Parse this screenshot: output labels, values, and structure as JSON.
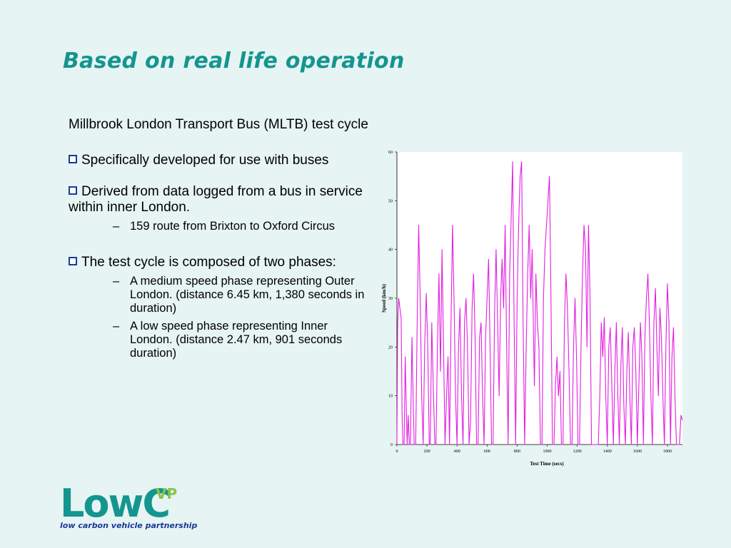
{
  "slide": {
    "title": "Based on real life operation",
    "intro": "Millbrook London Transport Bus (MLTB) test cycle",
    "bullets": [
      {
        "text": "Specifically developed for use with buses",
        "subs": []
      },
      {
        "text": "Derived from data logged from a bus in service within inner London.",
        "subs": [
          "159 route from Brixton to Oxford Circus"
        ]
      },
      {
        "text": "The test cycle is composed of two phases:",
        "subs": [
          "A medium speed phase representing  Outer London. (distance 6.45 km, 1,380 seconds in duration)",
          "A low speed phase representing Inner London. (distance 2.47 km, 901 seconds duration)"
        ]
      }
    ],
    "dash": "–"
  },
  "logo": {
    "low": "Low",
    "c": "C",
    "vp": "VP",
    "tagline": "low carbon vehicle partnership"
  },
  "chart_data": {
    "type": "line",
    "xlabel": "Test Time (secs)",
    "ylabel": "Speed (km/h)",
    "xlim": [
      0,
      1900
    ],
    "ylim": [
      0,
      60
    ],
    "xticks": [
      0,
      200,
      400,
      600,
      800,
      1000,
      1200,
      1400,
      1600,
      1800
    ],
    "yticks": [
      0,
      10,
      20,
      30,
      40,
      50,
      60
    ],
    "grid": false,
    "line_color": "#e21fe0",
    "series": [
      {
        "points": [
          [
            0,
            0
          ],
          [
            5,
            25
          ],
          [
            12,
            30
          ],
          [
            20,
            28
          ],
          [
            28,
            26
          ],
          [
            35,
            5
          ],
          [
            40,
            0
          ],
          [
            48,
            0
          ],
          [
            55,
            18
          ],
          [
            62,
            8
          ],
          [
            68,
            0
          ],
          [
            75,
            6
          ],
          [
            82,
            0
          ],
          [
            90,
            0
          ],
          [
            100,
            22
          ],
          [
            108,
            10
          ],
          [
            115,
            0
          ],
          [
            125,
            0
          ],
          [
            135,
            25
          ],
          [
            145,
            45
          ],
          [
            155,
            30
          ],
          [
            165,
            10
          ],
          [
            175,
            0
          ],
          [
            185,
            20
          ],
          [
            195,
            31
          ],
          [
            205,
            20
          ],
          [
            215,
            0
          ],
          [
            222,
            0
          ],
          [
            232,
            25
          ],
          [
            242,
            12
          ],
          [
            252,
            0
          ],
          [
            260,
            0
          ],
          [
            270,
            20
          ],
          [
            280,
            35
          ],
          [
            290,
            15
          ],
          [
            300,
            40
          ],
          [
            310,
            20
          ],
          [
            320,
            0
          ],
          [
            330,
            10
          ],
          [
            340,
            18
          ],
          [
            350,
            0
          ],
          [
            360,
            25
          ],
          [
            370,
            45
          ],
          [
            380,
            30
          ],
          [
            390,
            10
          ],
          [
            400,
            0
          ],
          [
            410,
            20
          ],
          [
            420,
            28
          ],
          [
            430,
            10
          ],
          [
            440,
            0
          ],
          [
            450,
            25
          ],
          [
            460,
            30
          ],
          [
            470,
            20
          ],
          [
            480,
            0
          ],
          [
            490,
            5
          ],
          [
            500,
            28
          ],
          [
            510,
            35
          ],
          [
            520,
            22
          ],
          [
            530,
            0
          ],
          [
            540,
            0
          ],
          [
            550,
            22
          ],
          [
            560,
            25
          ],
          [
            570,
            10
          ],
          [
            580,
            0
          ],
          [
            590,
            22
          ],
          [
            600,
            30
          ],
          [
            610,
            38
          ],
          [
            620,
            20
          ],
          [
            630,
            0
          ],
          [
            640,
            0
          ],
          [
            650,
            27
          ],
          [
            660,
            40
          ],
          [
            670,
            25
          ],
          [
            680,
            10
          ],
          [
            690,
            30
          ],
          [
            700,
            38
          ],
          [
            710,
            28
          ],
          [
            720,
            45
          ],
          [
            730,
            20
          ],
          [
            740,
            0
          ],
          [
            750,
            35
          ],
          [
            760,
            46
          ],
          [
            770,
            58
          ],
          [
            780,
            25
          ],
          [
            790,
            0
          ],
          [
            800,
            30
          ],
          [
            810,
            45
          ],
          [
            820,
            55
          ],
          [
            830,
            58
          ],
          [
            840,
            25
          ],
          [
            850,
            0
          ],
          [
            860,
            20
          ],
          [
            870,
            35
          ],
          [
            880,
            45
          ],
          [
            890,
            30
          ],
          [
            900,
            40
          ],
          [
            910,
            20
          ],
          [
            915,
            12
          ],
          [
            925,
            35
          ],
          [
            935,
            25
          ],
          [
            945,
            20
          ],
          [
            955,
            0
          ],
          [
            965,
            0
          ],
          [
            975,
            30
          ],
          [
            985,
            40
          ],
          [
            995,
            45
          ],
          [
            1005,
            50
          ],
          [
            1015,
            55
          ],
          [
            1025,
            30
          ],
          [
            1035,
            0
          ],
          [
            1045,
            0
          ],
          [
            1055,
            12
          ],
          [
            1065,
            18
          ],
          [
            1075,
            10
          ],
          [
            1085,
            15
          ],
          [
            1095,
            0
          ],
          [
            1105,
            0
          ],
          [
            1115,
            25
          ],
          [
            1125,
            35
          ],
          [
            1135,
            28
          ],
          [
            1145,
            15
          ],
          [
            1155,
            0
          ],
          [
            1165,
            0
          ],
          [
            1175,
            20
          ],
          [
            1185,
            30
          ],
          [
            1195,
            18
          ],
          [
            1205,
            0
          ],
          [
            1215,
            0
          ],
          [
            1225,
            20
          ],
          [
            1235,
            35
          ],
          [
            1245,
            45
          ],
          [
            1255,
            40
          ],
          [
            1265,
            20
          ],
          [
            1275,
            45
          ],
          [
            1285,
            30
          ],
          [
            1295,
            0
          ],
          [
            1310,
            0
          ],
          [
            1325,
            0
          ],
          [
            1340,
            0
          ],
          [
            1350,
            10
          ],
          [
            1360,
            25
          ],
          [
            1370,
            18
          ],
          [
            1380,
            26
          ],
          [
            1390,
            10
          ],
          [
            1400,
            0
          ],
          [
            1410,
            20
          ],
          [
            1420,
            24
          ],
          [
            1430,
            12
          ],
          [
            1440,
            0
          ],
          [
            1450,
            15
          ],
          [
            1460,
            25
          ],
          [
            1470,
            10
          ],
          [
            1480,
            0
          ],
          [
            1490,
            16
          ],
          [
            1500,
            24
          ],
          [
            1510,
            8
          ],
          [
            1520,
            0
          ],
          [
            1530,
            15
          ],
          [
            1540,
            23
          ],
          [
            1550,
            10
          ],
          [
            1560,
            0
          ],
          [
            1570,
            20
          ],
          [
            1580,
            24
          ],
          [
            1590,
            15
          ],
          [
            1600,
            0
          ],
          [
            1610,
            12
          ],
          [
            1620,
            25
          ],
          [
            1630,
            18
          ],
          [
            1640,
            0
          ],
          [
            1650,
            22
          ],
          [
            1660,
            30
          ],
          [
            1670,
            35
          ],
          [
            1680,
            25
          ],
          [
            1690,
            10
          ],
          [
            1700,
            0
          ],
          [
            1710,
            25
          ],
          [
            1720,
            32
          ],
          [
            1730,
            20
          ],
          [
            1740,
            10
          ],
          [
            1750,
            28
          ],
          [
            1760,
            22
          ],
          [
            1770,
            10
          ],
          [
            1780,
            0
          ],
          [
            1790,
            20
          ],
          [
            1800,
            33
          ],
          [
            1810,
            25
          ],
          [
            1820,
            0
          ],
          [
            1830,
            18
          ],
          [
            1840,
            24
          ],
          [
            1850,
            10
          ],
          [
            1860,
            0
          ],
          [
            1870,
            0
          ],
          [
            1880,
            0
          ],
          [
            1890,
            6
          ],
          [
            1900,
            5
          ]
        ]
      }
    ]
  }
}
